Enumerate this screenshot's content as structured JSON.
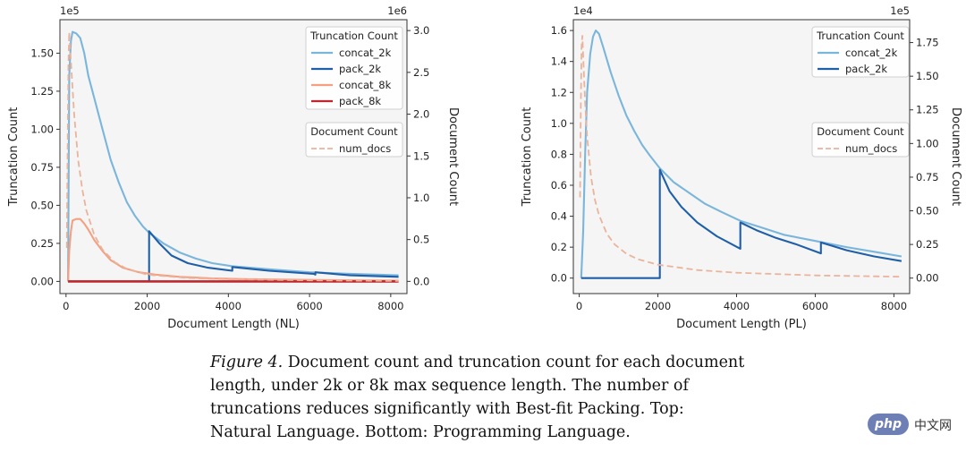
{
  "chart_data": [
    {
      "type": "line",
      "xlabel": "Document Length (NL)",
      "ylabel_left": "Truncation Count",
      "ylabel_right": "Document Count",
      "offset_left": "1e5",
      "offset_right": "1e6",
      "xlim": [
        -150,
        8400
      ],
      "ylim_left": [
        -0.08,
        1.72
      ],
      "ylim_right": [
        -0.146,
        3.13
      ],
      "xticks": [
        "0",
        "2000",
        "4000",
        "6000",
        "8000"
      ],
      "yticks_left": [
        "0.00",
        "0.25",
        "0.50",
        "0.75",
        "1.00",
        "1.25",
        "1.50"
      ],
      "yticks_right": [
        "0.0",
        "0.5",
        "1.0",
        "1.5",
        "2.0",
        "2.5",
        "3.0"
      ],
      "grid": false,
      "legend_title_trunc": "Truncation Count",
      "legend_title_doc": "Document Count",
      "series": [
        {
          "name": "concat_2k",
          "axis": "left",
          "color": "#7ab6dc",
          "points": [
            [
              50,
              0
            ],
            [
              80,
              1.35
            ],
            [
              120,
              1.58
            ],
            [
              160,
              1.64
            ],
            [
              250,
              1.63
            ],
            [
              350,
              1.6
            ],
            [
              450,
              1.5
            ],
            [
              550,
              1.35
            ],
            [
              700,
              1.2
            ],
            [
              900,
              1.0
            ],
            [
              1100,
              0.8
            ],
            [
              1300,
              0.65
            ],
            [
              1500,
              0.52
            ],
            [
              1700,
              0.43
            ],
            [
              1900,
              0.36
            ],
            [
              2048,
              0.32
            ],
            [
              2400,
              0.25
            ],
            [
              2800,
              0.19
            ],
            [
              3200,
              0.15
            ],
            [
              3600,
              0.12
            ],
            [
              4096,
              0.1
            ],
            [
              5000,
              0.08
            ],
            [
              6000,
              0.06
            ],
            [
              7000,
              0.05
            ],
            [
              8192,
              0.04
            ]
          ]
        },
        {
          "name": "pack_2k",
          "axis": "left",
          "color": "#1f5fa8",
          "points": [
            [
              50,
              0
            ],
            [
              2048,
              0
            ],
            [
              2048,
              0.33
            ],
            [
              2300,
              0.25
            ],
            [
              2600,
              0.17
            ],
            [
              3000,
              0.12
            ],
            [
              3500,
              0.09
            ],
            [
              4096,
              0.07
            ],
            [
              4096,
              0.095
            ],
            [
              5000,
              0.07
            ],
            [
              6100,
              0.05
            ],
            [
              6144,
              0.045
            ],
            [
              6144,
              0.06
            ],
            [
              7000,
              0.04
            ],
            [
              8192,
              0.03
            ]
          ]
        },
        {
          "name": "concat_8k",
          "axis": "left",
          "color": "#f4a081",
          "points": [
            [
              50,
              0
            ],
            [
              80,
              0.2
            ],
            [
              120,
              0.33
            ],
            [
              160,
              0.4
            ],
            [
              250,
              0.41
            ],
            [
              350,
              0.41
            ],
            [
              450,
              0.38
            ],
            [
              550,
              0.34
            ],
            [
              700,
              0.27
            ],
            [
              900,
              0.2
            ],
            [
              1100,
              0.14
            ],
            [
              1400,
              0.09
            ],
            [
              1800,
              0.06
            ],
            [
              2200,
              0.045
            ],
            [
              2800,
              0.03
            ],
            [
              3600,
              0.02
            ],
            [
              4500,
              0.015
            ],
            [
              6000,
              0.01
            ],
            [
              8192,
              0.005
            ]
          ]
        },
        {
          "name": "pack_8k",
          "axis": "left",
          "color": "#c0272d",
          "points": [
            [
              50,
              0
            ],
            [
              8192,
              0
            ]
          ]
        },
        {
          "name": "num_docs",
          "axis": "right",
          "color": "#eab39c",
          "dashed": true,
          "points": [
            [
              20,
              0.4
            ],
            [
              40,
              1.6
            ],
            [
              60,
              2.6
            ],
            [
              80,
              2.98
            ],
            [
              100,
              2.8
            ],
            [
              150,
              2.4
            ],
            [
              200,
              2.0
            ],
            [
              300,
              1.45
            ],
            [
              400,
              1.1
            ],
            [
              500,
              0.85
            ],
            [
              700,
              0.55
            ],
            [
              900,
              0.38
            ],
            [
              1200,
              0.23
            ],
            [
              1500,
              0.15
            ],
            [
              2000,
              0.08
            ],
            [
              3000,
              0.04
            ],
            [
              4000,
              0.025
            ],
            [
              6000,
              0.012
            ],
            [
              8192,
              0.005
            ]
          ]
        }
      ]
    },
    {
      "type": "line",
      "xlabel": "Document Length (PL)",
      "ylabel_left": "Truncation Count",
      "ylabel_right": "Document Count",
      "offset_left": "1e4",
      "offset_right": "1e5",
      "xlim": [
        -150,
        8400
      ],
      "ylim_left": [
        -0.1,
        1.67
      ],
      "ylim_right": [
        -0.115,
        1.92
      ],
      "xticks": [
        "0",
        "2000",
        "4000",
        "6000",
        "8000"
      ],
      "yticks_left": [
        "0.0",
        "0.2",
        "0.4",
        "0.6",
        "0.8",
        "1.0",
        "1.2",
        "1.4",
        "1.6"
      ],
      "yticks_right": [
        "0.00",
        "0.25",
        "0.50",
        "0.75",
        "1.00",
        "1.25",
        "1.50",
        "1.75"
      ],
      "grid": false,
      "legend_title_trunc": "Truncation Count",
      "legend_title_doc": "Document Count",
      "series": [
        {
          "name": "concat_2k",
          "axis": "left",
          "color": "#7ab6dc",
          "points": [
            [
              50,
              0
            ],
            [
              100,
              0.3
            ],
            [
              150,
              0.8
            ],
            [
              200,
              1.2
            ],
            [
              280,
              1.45
            ],
            [
              350,
              1.56
            ],
            [
              420,
              1.6
            ],
            [
              500,
              1.58
            ],
            [
              600,
              1.5
            ],
            [
              800,
              1.33
            ],
            [
              1000,
              1.18
            ],
            [
              1200,
              1.05
            ],
            [
              1400,
              0.95
            ],
            [
              1600,
              0.86
            ],
            [
              1800,
              0.79
            ],
            [
              2048,
              0.71
            ],
            [
              2400,
              0.62
            ],
            [
              2800,
              0.55
            ],
            [
              3200,
              0.48
            ],
            [
              3600,
              0.43
            ],
            [
              4096,
              0.37
            ],
            [
              4600,
              0.33
            ],
            [
              5200,
              0.28
            ],
            [
              6000,
              0.24
            ],
            [
              6800,
              0.2
            ],
            [
              7500,
              0.17
            ],
            [
              8192,
              0.14
            ]
          ]
        },
        {
          "name": "pack_2k",
          "axis": "left",
          "color": "#1f5fa8",
          "points": [
            [
              50,
              0
            ],
            [
              2048,
              0
            ],
            [
              2048,
              0.7
            ],
            [
              2300,
              0.56
            ],
            [
              2600,
              0.46
            ],
            [
              3000,
              0.36
            ],
            [
              3500,
              0.27
            ],
            [
              4096,
              0.19
            ],
            [
              4096,
              0.36
            ],
            [
              4500,
              0.31
            ],
            [
              5000,
              0.26
            ],
            [
              5500,
              0.22
            ],
            [
              6144,
              0.16
            ],
            [
              6144,
              0.23
            ],
            [
              6800,
              0.18
            ],
            [
              7500,
              0.14
            ],
            [
              8192,
              0.11
            ]
          ]
        },
        {
          "name": "num_docs",
          "axis": "right",
          "color": "#eab39c",
          "dashed": true,
          "points": [
            [
              20,
              0.6
            ],
            [
              40,
              1.3
            ],
            [
              60,
              1.72
            ],
            [
              80,
              1.8
            ],
            [
              100,
              1.65
            ],
            [
              150,
              1.3
            ],
            [
              200,
              1.05
            ],
            [
              300,
              0.75
            ],
            [
              400,
              0.58
            ],
            [
              500,
              0.47
            ],
            [
              700,
              0.33
            ],
            [
              900,
              0.25
            ],
            [
              1200,
              0.18
            ],
            [
              1500,
              0.14
            ],
            [
              2000,
              0.1
            ],
            [
              3000,
              0.06
            ],
            [
              4000,
              0.04
            ],
            [
              6000,
              0.02
            ],
            [
              8192,
              0.01
            ]
          ]
        }
      ]
    }
  ],
  "caption": {
    "figure_label": "Figure 4.",
    "text": " Document count and truncation count for each document length, under 2k or 8k max sequence length. The number of truncations reduces significantly with Best-fit Packing. Top: Natural Language. Bottom: Programming Language."
  },
  "watermark": {
    "badge": "php",
    "site": "中文网"
  }
}
